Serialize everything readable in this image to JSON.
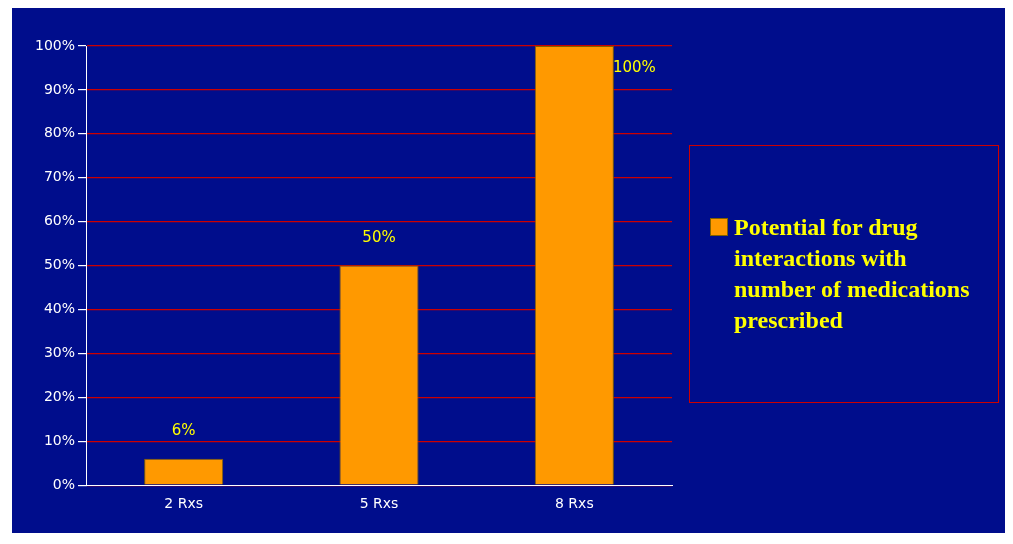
{
  "chart_data": {
    "type": "bar",
    "categories": [
      "2 Rxs",
      "5 Rxs",
      "8 Rxs"
    ],
    "series": [
      {
        "name": "Potential for drug interactions with number of medications prescribed",
        "color": "#ff9900",
        "values": [
          6,
          50,
          100
        ]
      }
    ],
    "ylim": [
      0,
      100
    ],
    "yticks": [
      {
        "value": 0,
        "label": "0%"
      },
      {
        "value": 10,
        "label": "10%"
      },
      {
        "value": 20,
        "label": "20%"
      },
      {
        "value": 30,
        "label": "30%"
      },
      {
        "value": 40,
        "label": "40%"
      },
      {
        "value": 50,
        "label": "50%"
      },
      {
        "value": 60,
        "label": "60%"
      },
      {
        "value": 70,
        "label": "70%"
      },
      {
        "value": 80,
        "label": "80%"
      },
      {
        "value": 90,
        "label": "90%"
      },
      {
        "value": 100,
        "label": "100%"
      }
    ],
    "value_labels": [
      "6%",
      "50%",
      "100%"
    ],
    "grid": "y",
    "legend": "right"
  }
}
